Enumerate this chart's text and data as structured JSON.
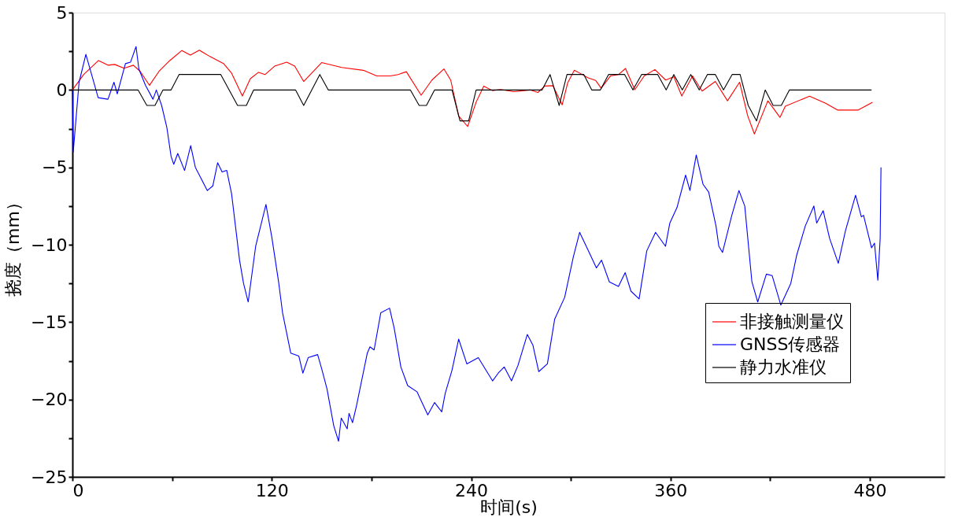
{
  "chart_data": {
    "type": "line",
    "xlabel": "时间(s)",
    "ylabel": "挠度（mm）",
    "xlim": [
      0,
      525
    ],
    "ylim": [
      -25,
      5
    ],
    "xticks": [
      0,
      {
        "value": 60,
        "label": null
      },
      120,
      {
        "value": 180,
        "label": null
      },
      240,
      {
        "value": 300,
        "label": null
      },
      360,
      {
        "value": 420,
        "label": null
      },
      480
    ],
    "yticks": [
      5,
      {
        "value": 2.5,
        "label": null
      },
      0,
      {
        "value": -2.5,
        "label": null
      },
      -5,
      {
        "value": -7.5,
        "label": null
      },
      -10,
      {
        "value": -12.5,
        "label": null
      },
      -15,
      {
        "value": -17.5,
        "label": null
      },
      -20,
      {
        "value": -22.5,
        "label": null
      },
      -25
    ],
    "grid": false,
    "legend": "bottom right",
    "marker": "none",
    "line_style": "solid",
    "series": [
      {
        "name": "非接触测量仪",
        "color": "#ff0000",
        "x": [
          0,
          6.8,
          15.7,
          21.4,
          25.4,
          31.1,
          36.7,
          40.8,
          46.4,
          52.1,
          58.6,
          65.9,
          71,
          76.4,
          82.8,
          90.9,
          95.8,
          102.3,
          107.1,
          112,
          116,
          121.7,
          129,
          133.8,
          139.2,
          150,
          162.1,
          175.1,
          183.2,
          191.3,
          196.1,
          201,
          209.9,
          216.4,
          223.6,
          227.7,
          232.5,
          237.9,
          243,
          247.6,
          252.8,
          257.6,
          265.7,
          275.4,
          280.2,
          284.3,
          289.2,
          294.8,
          298.1,
          302.1,
          306.2,
          310.2,
          315,
          318.3,
          323.9,
          328.8,
          332.9,
          338.5,
          344.2,
          350.6,
          357.1,
          362,
          366.8,
          373.3,
          379,
          387,
          394.3,
          401.6,
          406.5,
          410.5,
          418.6,
          425.9,
          429.1,
          443.7,
          453.4,
          460.7,
          472.8,
          481.6
        ],
        "values": [
          0,
          1.0,
          1.9,
          1.6,
          1.65,
          1.4,
          1.6,
          1.2,
          0.3,
          1.2,
          1.9,
          2.55,
          2.25,
          2.57,
          2.16,
          1.71,
          1.09,
          -0.39,
          0.73,
          1.14,
          1.0,
          1.54,
          1.8,
          1.54,
          0.55,
          1.77,
          1.45,
          1.27,
          0.91,
          0.91,
          1.0,
          1.18,
          -0.34,
          0.64,
          1.36,
          0.64,
          -1.68,
          -2.36,
          -0.79,
          0.25,
          -0.04,
          0.03,
          -0.11,
          0,
          -0.16,
          0.25,
          0.28,
          -0.96,
          0.46,
          1.27,
          1.04,
          0.79,
          0.61,
          0.11,
          0.91,
          1.0,
          1.39,
          0.02,
          0.91,
          1.32,
          0.64,
          0.86,
          -0.39,
          0.91,
          -0.07,
          0.55,
          -0.7,
          0.5,
          -1.68,
          -2.84,
          -0.7,
          -1.77,
          -1.05,
          -0.4,
          -0.86,
          -1.3,
          -1.3,
          -0.8
        ]
      },
      {
        "name": "GNSS传感器",
        "color": "#0000ff",
        "x": [
          0,
          0.5,
          4,
          8.1,
          15.5,
          21.4,
          25,
          27,
          31.9,
          35,
          38.3,
          40,
          44,
          48.5,
          50.5,
          53.7,
          56.8,
          59.4,
          61,
          63.4,
          67.5,
          71.2,
          74,
          81.2,
          84.5,
          87.4,
          90.1,
          92.9,
          95.8,
          100.6,
          103,
          105.8,
          110.3,
          116.5,
          120,
          124.1,
          126.5,
          131.4,
          136.3,
          138.7,
          141.9,
          147.6,
          150,
          153.2,
          157.3,
          160.2,
          161.8,
          165.4,
          166.5,
          168.6,
          171,
          173.5,
          177.5,
          179.1,
          181.6,
          185.6,
          190.9,
          193.7,
          197.7,
          201.8,
          207.4,
          213.9,
          218,
          222.3,
          224.4,
          228.5,
          232.5,
          237.4,
          244.3,
          252.9,
          256.3,
          259.9,
          264.3,
          268.2,
          273.8,
          277.2,
          280.7,
          285.9,
          290.3,
          296.3,
          301.5,
          305.3,
          310.2,
          315.4,
          318.5,
          323.2,
          328.7,
          332.7,
          336.2,
          341.1,
          345.7,
          351,
          357,
          359.6,
          363.9,
          369.1,
          371.7,
          375.5,
          379.6,
          383,
          387.4,
          389.1,
          391.3,
          396.9,
          401.2,
          404.7,
          409,
          412.5,
          417.7,
          421.2,
          426.4,
          432.4,
          435.9,
          441.1,
          446.3,
          448,
          451.9,
          455.8,
          461,
          465.3,
          471.4,
          474.9,
          476.2,
          481,
          482.8,
          484.8,
          486.2,
          486.7
        ],
        "values": [
          0,
          -4.0,
          0.5,
          2.3,
          -0.5,
          -0.6,
          0.5,
          -0.25,
          1.7,
          1.8,
          2.8,
          1.35,
          0.3,
          -0.6,
          0,
          -1.0,
          -2.4,
          -4.3,
          -4.8,
          -4.1,
          -5.2,
          -3.6,
          -5.0,
          -6.5,
          -6.2,
          -4.7,
          -5.3,
          -5.2,
          -6.7,
          -11.0,
          -12.5,
          -13.7,
          -10.1,
          -7.4,
          -9.5,
          -12.4,
          -14.4,
          -17.0,
          -17.2,
          -18.3,
          -17.3,
          -17.1,
          -18.0,
          -19.3,
          -21.7,
          -22.7,
          -21.2,
          -21.9,
          -20.9,
          -21.5,
          -20.4,
          -19.1,
          -17.0,
          -16.6,
          -16.8,
          -14.4,
          -14.1,
          -15.4,
          -17.9,
          -19.1,
          -19.5,
          -21.0,
          -20.2,
          -20.8,
          -19.6,
          -18.1,
          -16.1,
          -17.7,
          -17.3,
          -18.8,
          -18.3,
          -17.9,
          -18.8,
          -17.8,
          -15.8,
          -16.5,
          -18.2,
          -17.7,
          -14.8,
          -13.4,
          -10.8,
          -9.2,
          -10.3,
          -11.5,
          -11.0,
          -12.4,
          -12.7,
          -11.8,
          -13.0,
          -13.5,
          -10.4,
          -9.2,
          -10.1,
          -8.6,
          -7.6,
          -5.5,
          -6.5,
          -4.2,
          -6.1,
          -6.6,
          -8.8,
          -10.1,
          -10.5,
          -8.1,
          -6.5,
          -7.5,
          -12.4,
          -13.7,
          -11.9,
          -12.0,
          -13.9,
          -12.5,
          -10.7,
          -8.8,
          -7.5,
          -8.6,
          -7.8,
          -9.6,
          -11.2,
          -9.1,
          -6.8,
          -8.2,
          -8.1,
          -10.2,
          -9.9,
          -12.3,
          -9.6,
          -5.0
        ]
      },
      {
        "name": "静力水准仪",
        "color": "#000000",
        "x": [
          0,
          39.5,
          44.8,
          49.7,
          54.5,
          59.4,
          64.2,
          89.3,
          99.4,
          104.7,
          109.1,
          134.3,
          139.2,
          148.9,
          154,
          203.4,
          208.7,
          213.1,
          218,
          228.5,
          233.3,
          238.5,
          243,
          282.7,
          287.5,
          293,
          297.7,
          307.8,
          312.6,
          317.8,
          322.7,
          332.4,
          337.4,
          342.6,
          352.3,
          357.4,
          362,
          367.1,
          372.2,
          377.3,
          382.2,
          387,
          391.9,
          397.1,
          401.9,
          406.8,
          411.8,
          417,
          421.8,
          426.7,
          431.6,
          481
        ],
        "values": [
          0,
          0,
          -1,
          -1,
          0,
          0,
          1,
          1,
          -1,
          -1,
          0,
          0,
          -1,
          1,
          0,
          0,
          -1,
          -1,
          0,
          0,
          -2,
          -2,
          0,
          0,
          1,
          -1,
          1,
          1,
          0,
          0,
          1,
          1,
          0,
          1,
          1,
          0,
          1,
          0,
          1,
          0,
          1,
          1,
          0,
          1,
          1,
          -1,
          -2,
          0,
          -1,
          -1,
          0,
          0
        ]
      }
    ]
  }
}
